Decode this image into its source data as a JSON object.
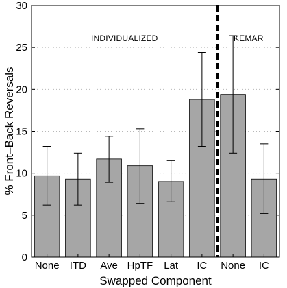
{
  "chart_data": {
    "type": "bar",
    "xlabel": "Swapped Component",
    "ylabel": "% Front–Back Reversals",
    "ylim": [
      0,
      30
    ],
    "yticks": [
      0,
      5,
      10,
      15,
      20,
      25,
      30
    ],
    "grid": "horizontal dotted",
    "categories": [
      "None",
      "ITD",
      "Ave",
      "HpTF",
      "Lat",
      "IC",
      "None",
      "IC"
    ],
    "values": [
      9.7,
      9.3,
      11.7,
      10.9,
      9.0,
      18.8,
      19.4,
      9.3
    ],
    "error_low": [
      6.2,
      6.2,
      8.9,
      6.4,
      6.6,
      13.2,
      12.4,
      5.2
    ],
    "error_high": [
      13.2,
      12.4,
      14.4,
      15.3,
      11.5,
      24.4,
      26.4,
      13.5
    ],
    "groups": [
      {
        "label": "INDIVIDUALIZED",
        "categories": 6
      },
      {
        "label": "KEMAR",
        "categories": 2
      }
    ],
    "bar_color": "#a6a6a6",
    "divider_after_index": 5
  }
}
